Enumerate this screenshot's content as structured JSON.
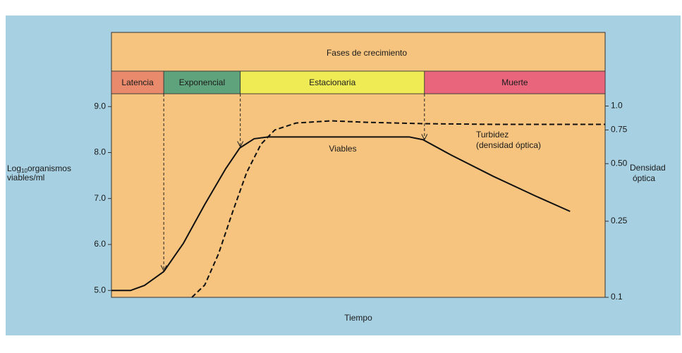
{
  "chart_data": {
    "type": "line",
    "phases_title": "Fases de crecimiento",
    "phases": [
      {
        "name": "Latencia",
        "color": "#e98a6c",
        "xlim": [
          0,
          10.6
        ]
      },
      {
        "name": "Exponencial",
        "color": "#5fa37c",
        "xlim": [
          10.6,
          26.1
        ]
      },
      {
        "name": "Estacionaria",
        "color": "#eeeb55",
        "xlim": [
          26.1,
          63.4
        ]
      },
      {
        "name": "Muerte",
        "color": "#e8657c",
        "xlim": [
          63.4,
          100
        ]
      }
    ],
    "x_label": "Tiempo",
    "y_label": {
      "base": "Log",
      "subscript": "10",
      "rest": "organismos",
      "line2": "viables/ml"
    },
    "y2_label": [
      "Densidad",
      "óptica"
    ],
    "xlim": [
      0,
      100
    ],
    "ylim": [
      4.85,
      9.28
    ],
    "yticks": [
      {
        "value": 9,
        "label": "9.0"
      },
      {
        "value": 8,
        "label": "8.0"
      },
      {
        "value": 7,
        "label": "7.0"
      },
      {
        "value": 6,
        "label": "6.0"
      },
      {
        "value": 5,
        "label": "5.0"
      }
    ],
    "y2lim": [
      0.1,
      1.16
    ],
    "y2_log": true,
    "y2ticks": [
      {
        "value": 1,
        "label": "1.0"
      },
      0.75,
      {
        "value": 0.5,
        "label": "0.50"
      },
      0.25,
      0.1
    ],
    "series": [
      {
        "name": "Viables",
        "color": "#111111",
        "dash": false,
        "x": [
          0,
          3.9,
          6.7,
          10.6,
          14.6,
          18.9,
          23.1,
          26,
          28.9,
          31.7,
          60.3,
          63.1,
          68.9,
          77.4,
          86,
          92.9
        ],
        "values": [
          5.0,
          5.0,
          5.11,
          5.41,
          6.03,
          6.87,
          7.64,
          8.1,
          8.3,
          8.34,
          8.34,
          8.28,
          7.94,
          7.48,
          7.05,
          6.72
        ]
      },
      {
        "name": "Turbidez",
        "name_line2": "(densidad óptica)",
        "color": "#111111",
        "dash": true,
        "axis": "y2",
        "x": [
          16.3,
          18.9,
          21.7,
          24.6,
          27.4,
          30.3,
          33.1,
          37.4,
          44.6,
          51.7,
          63.1,
          77.4,
          100
        ],
        "values": [
          0.1,
          0.116,
          0.169,
          0.282,
          0.45,
          0.632,
          0.75,
          0.815,
          0.837,
          0.822,
          0.809,
          0.802,
          0.802
        ]
      }
    ]
  }
}
